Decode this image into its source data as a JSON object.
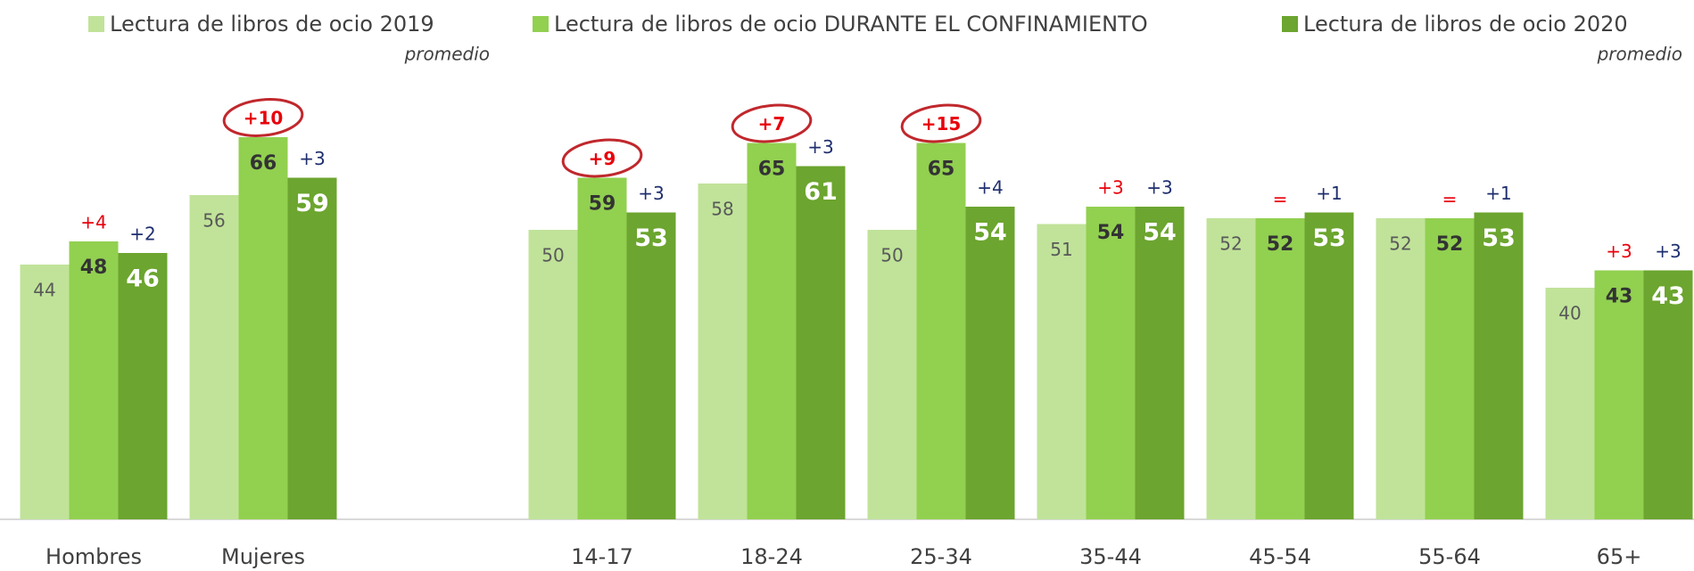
{
  "chart_data": {
    "type": "bar",
    "categories": [
      "Hombres",
      "Mujeres",
      null,
      "14-17",
      "18-24",
      "25-34",
      "35-44",
      "45-54",
      "55-64",
      "65+"
    ],
    "series": [
      {
        "name": "Lectura de libros de ocio 2019",
        "note": "promedio",
        "color": "#c0e399",
        "values": [
          44,
          56,
          null,
          50,
          58,
          50,
          51,
          52,
          52,
          40
        ]
      },
      {
        "name": "Lectura de libros de ocio DURANTE EL CONFINAMIENTO",
        "color": "#92d050",
        "values": [
          48,
          66,
          null,
          59,
          65,
          65,
          54,
          52,
          52,
          43
        ],
        "diff_labels": [
          "+4",
          "+10",
          null,
          "+9",
          "+7",
          "+15",
          "+3",
          "=",
          "=",
          "+3"
        ],
        "diff_color": "#e8000b"
      },
      {
        "name": "Lectura de libros de ocio 2020",
        "note": "promedio",
        "color": "#6ca52f",
        "values": [
          46,
          59,
          null,
          53,
          61,
          54,
          54,
          53,
          53,
          43
        ],
        "diff_labels": [
          "+2",
          "+3",
          null,
          "+3",
          "+3",
          "+4",
          "+3",
          "+1",
          "+1",
          "+3"
        ],
        "diff_color": "#1f2f6e"
      }
    ]
  }
}
